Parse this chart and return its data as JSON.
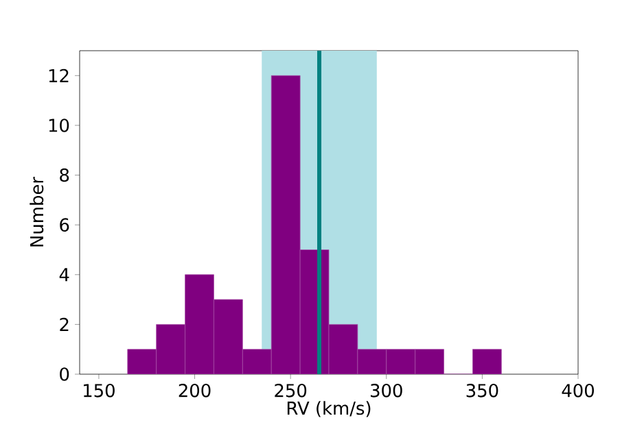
{
  "chart_data": {
    "type": "histogram",
    "xlabel": "RV (km/s)",
    "ylabel": "Number",
    "bins": [
      165,
      180,
      195,
      210,
      225,
      240,
      255,
      270,
      285,
      300,
      315,
      330,
      345,
      360
    ],
    "values": [
      1,
      2,
      4,
      3,
      1,
      12,
      5,
      2,
      1,
      1,
      1,
      0,
      1
    ],
    "color": "#800080",
    "xlim": [
      140,
      400
    ],
    "ylim": [
      0,
      13
    ],
    "xticks": [
      150,
      200,
      250,
      300,
      350,
      400
    ],
    "yticks": [
      0,
      2,
      4,
      6,
      8,
      10,
      12
    ],
    "bands": [
      {
        "axis": "x",
        "from": 235,
        "to": 295,
        "color": "#b0dfe5"
      }
    ],
    "ref_lines": [
      {
        "axis": "x",
        "value": 265,
        "color": "#008080"
      }
    ]
  }
}
